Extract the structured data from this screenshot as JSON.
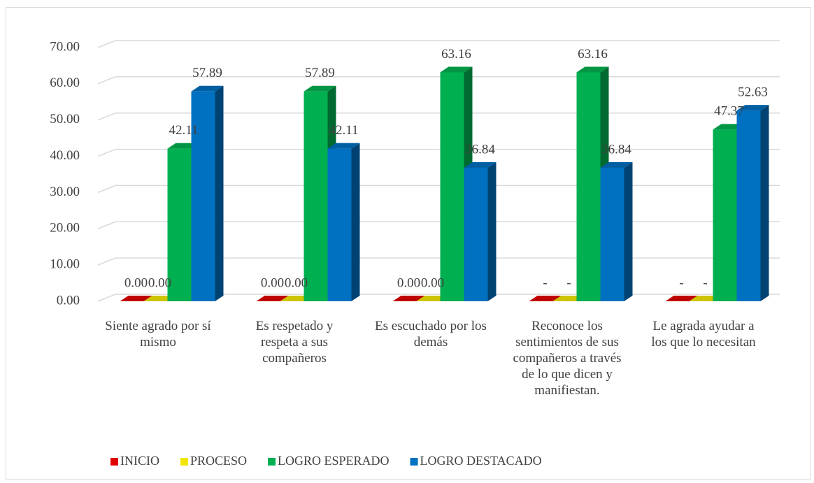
{
  "chart_data": {
    "type": "bar3d",
    "categories": [
      "Siente agrado por sí mismo",
      "Es respetado y respeta a sus compañeros",
      "Es escuchado por los demás",
      "Reconoce los sentimientos de sus compañeros a través de lo que dicen y manifiestan.",
      "Le agrada ayudar a los que lo necesitan"
    ],
    "series": [
      {
        "name": "INICIO",
        "color": "#e00000",
        "values": [
          0,
          0,
          0,
          0,
          0
        ],
        "value_labels": [
          "0.00",
          "0.00",
          "0.00",
          "-",
          "-"
        ]
      },
      {
        "name": "PROCESO",
        "color": "#f2e600",
        "values": [
          0,
          0,
          0,
          0,
          0
        ],
        "value_labels": [
          "0.00",
          "0.00",
          "0.00",
          "-",
          "-"
        ]
      },
      {
        "name": "LOGRO ESPERADO",
        "color": "#00b050",
        "values": [
          42.11,
          57.89,
          63.16,
          63.16,
          47.37
        ]
      },
      {
        "name": "LOGRO DESTACADO",
        "color": "#0070c0",
        "values": [
          57.89,
          42.11,
          36.84,
          36.84,
          52.63
        ]
      }
    ],
    "ylim": [
      0,
      70
    ],
    "yticks": [
      {
        "value": 0,
        "label": "0.00"
      },
      {
        "value": 10,
        "label": "10.00"
      },
      {
        "value": 20,
        "label": "20.00"
      },
      {
        "value": 30,
        "label": "30.00"
      },
      {
        "value": 40,
        "label": "40.00"
      },
      {
        "value": 50,
        "label": "50.00"
      },
      {
        "value": 60,
        "label": "60.00"
      },
      {
        "value": 70,
        "label": "70.00"
      }
    ],
    "grid": true,
    "legend": "bottom"
  }
}
